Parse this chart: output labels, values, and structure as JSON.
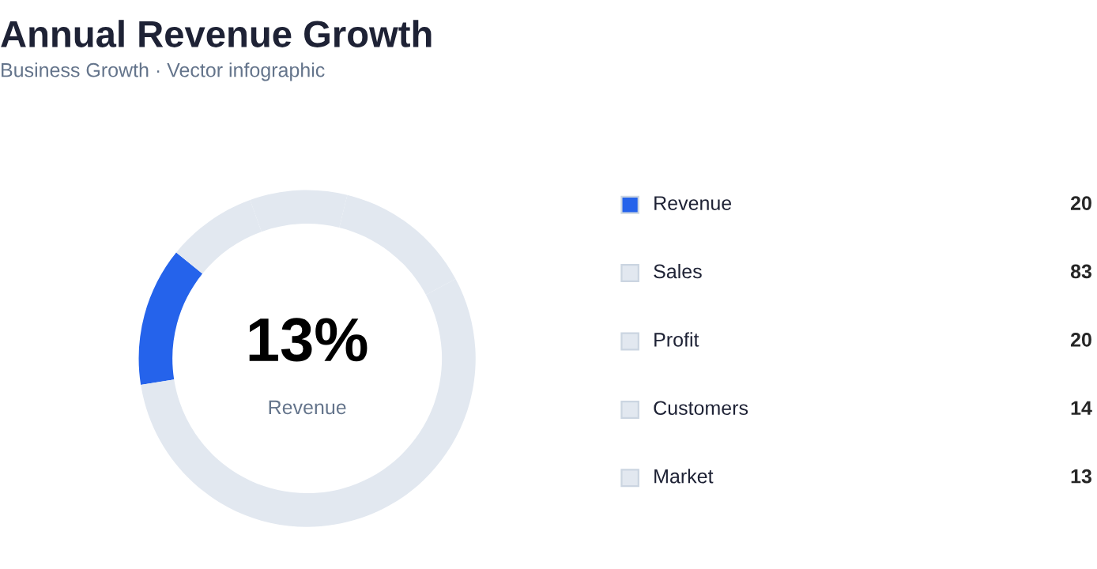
{
  "chart_data": {
    "type": "donut",
    "title": "Annual Revenue Growth",
    "subtitle": "Business Growth · Vector infographic",
    "categories": [
      "Revenue",
      "Sales",
      "Profit",
      "Customers",
      "Market"
    ],
    "values": [
      20,
      83,
      20,
      14,
      13
    ],
    "colors": [
      "#2563eb",
      "#e2e8f0",
      "#e2e8f0",
      "#e2e8f0",
      "#e2e8f0"
    ],
    "annotations": [
      "13%",
      "Revenue"
    ],
    "data_labels": true,
    "legend": "right"
  }
}
